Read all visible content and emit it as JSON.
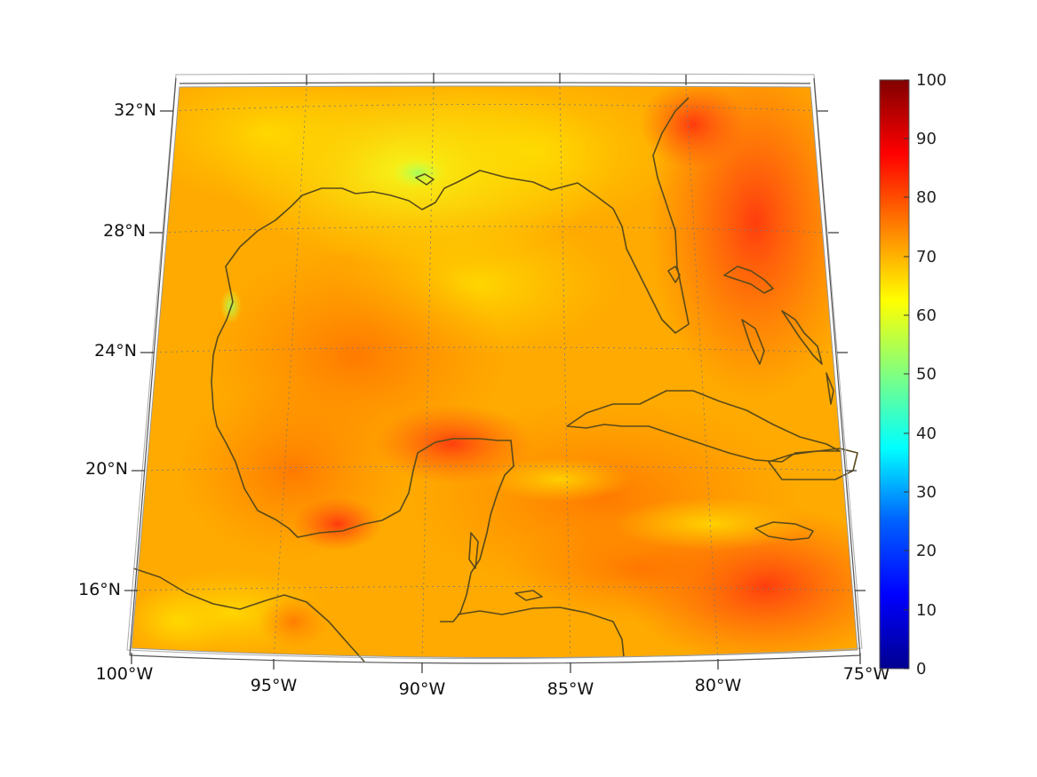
{
  "map": {
    "projection": "lambert-conformal-conic",
    "extent": {
      "lon": [
        -100,
        -75
      ],
      "lat": [
        14,
        33
      ]
    },
    "field_colors": {
      "low": "#ffea00",
      "mid": "#ffb000",
      "high": "#ff4a10",
      "peak": "#ef1d10"
    },
    "land_outline_color": "#5a4a1a",
    "gridlines": "dotted",
    "longitude_labels": [
      "100°W",
      "95°W",
      "90°W",
      "85°W",
      "80°W",
      "75°W"
    ],
    "latitude_labels": [
      "32°N",
      "28°N",
      "24°N",
      "20°N",
      "16°N"
    ]
  },
  "colorbar": {
    "colormap": "jet",
    "range": [
      0,
      100
    ],
    "tick_labels": [
      "100",
      "90",
      "80",
      "70",
      "60",
      "50",
      "40",
      "30",
      "20",
      "10",
      "0"
    ],
    "colors": [
      "#00008f",
      "#0000ff",
      "#0080ff",
      "#00ffff",
      "#80ff80",
      "#ffff00",
      "#ff8000",
      "#ff0000",
      "#800000"
    ]
  }
}
